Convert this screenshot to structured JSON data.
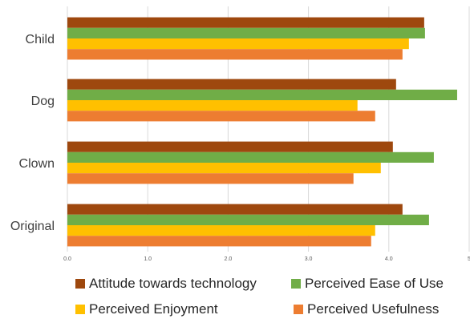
{
  "chart_data": {
    "type": "bar",
    "orientation": "horizontal",
    "title": "",
    "xlabel": "",
    "ylabel": "",
    "categories": [
      "Original",
      "Clown",
      "Dog",
      "Child"
    ],
    "xlim": [
      0,
      5
    ],
    "xticks": [
      {
        "value": 0,
        "label": "0.0"
      },
      {
        "value": 1,
        "label": "1.0"
      },
      {
        "value": 2,
        "label": "2.0"
      },
      {
        "value": 3,
        "label": "3.0"
      },
      {
        "value": 4,
        "label": "4.0"
      },
      {
        "value": 5,
        "label": "5"
      }
    ],
    "grid": "vertical",
    "legend_position": "bottom",
    "series": [
      {
        "name": "Perceived Usefulness",
        "color": "#ED7D31",
        "values": [
          3.78,
          3.56,
          3.83,
          4.17
        ]
      },
      {
        "name": "Perceived Enjoyment",
        "color": "#FFC000",
        "values": [
          3.83,
          3.9,
          3.61,
          4.25
        ]
      },
      {
        "name": "Perceived Ease of Use",
        "color": "#70AD47",
        "values": [
          4.5,
          4.56,
          4.85,
          4.45
        ]
      },
      {
        "name": "Attitude towards technology",
        "color": "#9E480E",
        "values": [
          4.17,
          4.05,
          4.09,
          4.44
        ]
      }
    ],
    "legend_order": [
      "Attitude towards technology",
      "Perceived Ease of Use",
      "Perceived Enjoyment",
      "Perceived Usefulness"
    ]
  }
}
